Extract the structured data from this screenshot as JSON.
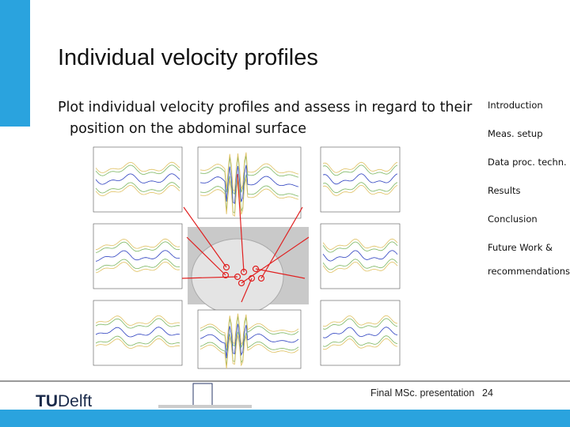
{
  "slide": {
    "title": "Individual velocity profiles",
    "bullet_lines": [
      "Plot individual velocity profiles and assess in regard to their",
      "position on the abdominal surface"
    ],
    "nav": [
      "Introduction",
      "Meas. setup",
      "Data proc. techn.",
      "Results",
      "Conclusion",
      "Future Work &",
      "recommendations"
    ],
    "active_nav": 2,
    "footer": {
      "presentation": "Final MSc. presentation",
      "page": 24,
      "logo_tu": "TU",
      "logo_delft": "Delft"
    }
  }
}
